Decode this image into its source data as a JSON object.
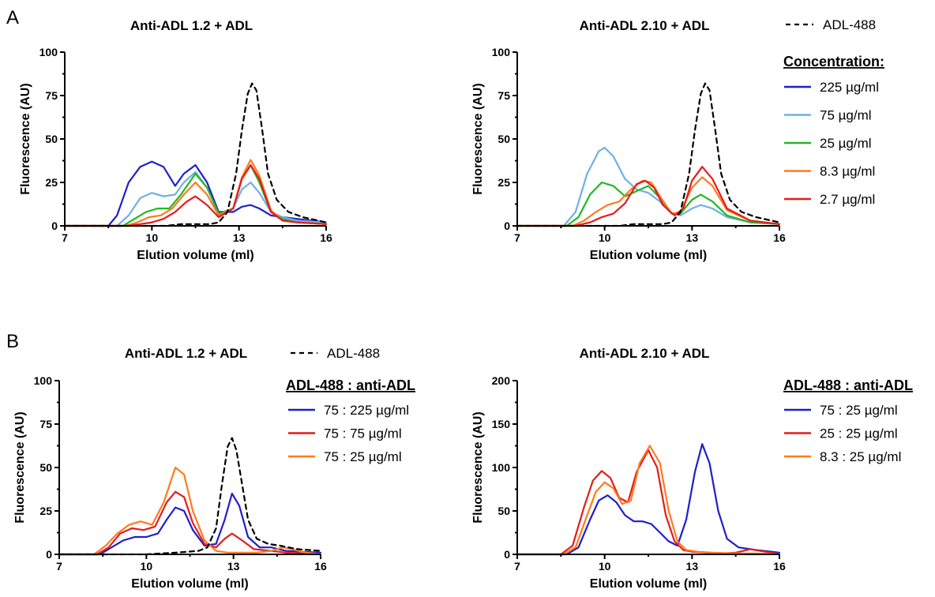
{
  "panel_labels": {
    "a": "A",
    "b": "B"
  },
  "chart_data": [
    {
      "type": "line",
      "panel": "A",
      "title": "Anti-ADL 1.2 + ADL",
      "xlabel": "Elution volume  (ml)",
      "ylabel": "Fluorescence (AU)",
      "xlim": [
        7,
        16
      ],
      "ylim": [
        0,
        100
      ],
      "xticks": [
        "7",
        "10",
        "13",
        "16"
      ],
      "yticks": [
        "0",
        "25",
        "50",
        "75",
        "100"
      ],
      "series": [
        {
          "name": "225 µg/ml",
          "color": "#1f1fcc",
          "style": "solid",
          "x": [
            7,
            8.5,
            8.8,
            9.2,
            9.6,
            10.0,
            10.4,
            10.8,
            11.1,
            11.5,
            11.9,
            12.3,
            12.8,
            13.1,
            13.4,
            13.7,
            14.1,
            14.5,
            15.0,
            16.0
          ],
          "y": [
            0,
            0,
            6,
            25,
            34,
            37,
            34,
            23,
            30,
            35,
            25,
            8,
            8,
            11,
            12,
            10,
            6,
            5,
            4,
            2
          ]
        },
        {
          "name": "75 µg/ml",
          "color": "#6fb0e8",
          "style": "solid",
          "x": [
            7,
            8.8,
            9.2,
            9.6,
            10.0,
            10.4,
            10.8,
            11.1,
            11.5,
            11.9,
            12.3,
            12.8,
            13.1,
            13.4,
            13.7,
            14.1,
            14.5,
            15.0,
            16.0
          ],
          "y": [
            0,
            0,
            6,
            16,
            19,
            17,
            18,
            25,
            31,
            22,
            7,
            10,
            21,
            25,
            19,
            8,
            5,
            3,
            2
          ]
        },
        {
          "name": "25 µg/ml",
          "color": "#22b822",
          "style": "solid",
          "x": [
            7,
            9.0,
            9.4,
            9.8,
            10.2,
            10.6,
            11.0,
            11.5,
            11.9,
            12.3,
            12.8,
            13.1,
            13.4,
            13.7,
            14.1,
            14.5,
            15.0,
            16.0
          ],
          "y": [
            0,
            0,
            4,
            8,
            10,
            10,
            18,
            30,
            22,
            7,
            10,
            27,
            35,
            25,
            8,
            4,
            2,
            1
          ]
        },
        {
          "name": "8.3 µg/ml",
          "color": "#ff7a1f",
          "style": "solid",
          "x": [
            7,
            9.1,
            9.5,
            9.9,
            10.3,
            10.7,
            11.1,
            11.5,
            11.9,
            12.3,
            12.8,
            13.1,
            13.4,
            13.7,
            14.1,
            14.5,
            15.0,
            16.0
          ],
          "y": [
            0,
            0,
            2,
            5,
            6,
            10,
            18,
            25,
            18,
            6,
            10,
            28,
            38,
            29,
            9,
            3,
            2,
            1
          ]
        },
        {
          "name": "2.7 µg/ml",
          "color": "#e51c1c",
          "style": "solid",
          "x": [
            7,
            9.2,
            9.6,
            10.0,
            10.4,
            10.8,
            11.2,
            11.5,
            11.9,
            12.3,
            12.8,
            13.1,
            13.4,
            13.7,
            14.1,
            14.5,
            15.0,
            16.0
          ],
          "y": [
            0,
            0,
            1,
            2,
            4,
            8,
            14,
            17,
            12,
            5,
            10,
            27,
            35,
            27,
            8,
            3,
            2,
            1
          ]
        },
        {
          "name": "ADL-488",
          "color": "#000000",
          "style": "dashed",
          "x": [
            7,
            10.5,
            11.0,
            11.5,
            12.0,
            12.3,
            12.6,
            12.9,
            13.1,
            13.3,
            13.45,
            13.6,
            13.8,
            14.0,
            14.3,
            14.7,
            15.2,
            16.0
          ],
          "y": [
            0,
            0,
            1,
            1,
            1,
            2,
            8,
            30,
            55,
            76,
            82,
            78,
            55,
            30,
            15,
            8,
            5,
            2
          ]
        }
      ]
    },
    {
      "type": "line",
      "panel": "A",
      "title": "Anti-ADL 2.10 + ADL",
      "xlabel": "Elution volume  (ml)",
      "ylabel": "Fluorescence (AU)",
      "xlim": [
        7,
        16
      ],
      "ylim": [
        0,
        100
      ],
      "xticks": [
        "7",
        "10",
        "13",
        "16"
      ],
      "yticks": [
        "0",
        "25",
        "50",
        "75",
        "100"
      ],
      "series": [
        {
          "name": "75 µg/ml",
          "color": "#6fb0e8",
          "style": "solid",
          "x": [
            7,
            8.6,
            9.0,
            9.4,
            9.8,
            10.0,
            10.3,
            10.7,
            11.1,
            11.5,
            11.9,
            12.3,
            12.6,
            13.0,
            13.3,
            13.7,
            14.2,
            15.0,
            16.0
          ],
          "y": [
            0,
            0,
            8,
            30,
            43,
            45,
            40,
            27,
            21,
            19,
            14,
            7,
            6,
            10,
            12,
            10,
            5,
            2,
            1
          ]
        },
        {
          "name": "25 µg/ml",
          "color": "#22b822",
          "style": "solid",
          "x": [
            7,
            8.7,
            9.1,
            9.5,
            9.9,
            10.3,
            10.7,
            11.1,
            11.5,
            11.9,
            12.3,
            12.6,
            13.0,
            13.3,
            13.7,
            14.2,
            15.0,
            16.0
          ],
          "y": [
            0,
            0,
            5,
            18,
            25,
            23,
            17,
            20,
            23,
            16,
            7,
            7,
            15,
            18,
            14,
            6,
            2,
            1
          ]
        },
        {
          "name": "8.3 µg/ml",
          "color": "#ff7a1f",
          "style": "solid",
          "x": [
            7,
            8.9,
            9.3,
            9.7,
            10.1,
            10.5,
            10.9,
            11.3,
            11.6,
            11.9,
            12.3,
            12.6,
            13.0,
            13.35,
            13.7,
            14.2,
            15.0,
            16.0
          ],
          "y": [
            0,
            0,
            3,
            8,
            12,
            14,
            21,
            26,
            25,
            17,
            7,
            8,
            22,
            28,
            23,
            9,
            3,
            1
          ]
        },
        {
          "name": "2.7 µg/ml",
          "color": "#e51c1c",
          "style": "solid",
          "x": [
            7,
            9.0,
            9.5,
            9.9,
            10.3,
            10.7,
            11.1,
            11.4,
            11.7,
            12.0,
            12.4,
            12.7,
            13.0,
            13.35,
            13.7,
            14.2,
            15.0,
            16.0
          ],
          "y": [
            0,
            0,
            2,
            5,
            7,
            13,
            24,
            26,
            22,
            12,
            6,
            10,
            26,
            34,
            27,
            10,
            3,
            1
          ]
        },
        {
          "name": "ADL-488",
          "color": "#000000",
          "style": "dashed",
          "x": [
            7,
            10.5,
            11.0,
            11.5,
            12.0,
            12.3,
            12.6,
            12.9,
            13.1,
            13.3,
            13.45,
            13.6,
            13.8,
            14.0,
            14.3,
            14.7,
            15.2,
            16.0
          ],
          "y": [
            0,
            0,
            1,
            1,
            1,
            2,
            8,
            30,
            55,
            76,
            82,
            78,
            55,
            30,
            15,
            8,
            5,
            2
          ]
        }
      ]
    },
    {
      "type": "line",
      "panel": "B",
      "title": "Anti-ADL 1.2 + ADL",
      "xlabel": "Elution volume  (ml)",
      "ylabel": "Fluorescence (AU)",
      "xlim": [
        7,
        16
      ],
      "ylim": [
        0,
        100
      ],
      "xticks": [
        "7",
        "10",
        "13",
        "16"
      ],
      "yticks": [
        "0",
        "25",
        "50",
        "75",
        "100"
      ],
      "series": [
        {
          "name": "75   : 225 µg/ml",
          "color": "#1f1fcc",
          "style": "solid",
          "x": [
            7,
            8.4,
            8.8,
            9.2,
            9.6,
            10.0,
            10.4,
            10.7,
            11.0,
            11.3,
            11.6,
            12.0,
            12.4,
            12.7,
            12.95,
            13.2,
            13.5,
            13.9,
            14.3,
            14.8,
            16.0
          ],
          "y": [
            0,
            0,
            4,
            8,
            10,
            10,
            12,
            20,
            27,
            25,
            14,
            5,
            6,
            20,
            35,
            28,
            10,
            4,
            4,
            2,
            1
          ]
        },
        {
          "name": "75   : 75 µg/ml",
          "color": "#e51c1c",
          "style": "solid",
          "x": [
            7,
            8.3,
            8.7,
            9.1,
            9.5,
            9.9,
            10.3,
            10.7,
            11.0,
            11.3,
            11.6,
            12.0,
            12.4,
            12.7,
            12.95,
            13.3,
            13.7,
            14.3,
            14.8,
            16.0
          ],
          "y": [
            0,
            0,
            4,
            12,
            15,
            14,
            16,
            30,
            36,
            33,
            18,
            6,
            4,
            9,
            12,
            8,
            3,
            2,
            1,
            0
          ]
        },
        {
          "name": "75   : 25 µg/ml",
          "color": "#ff7a1f",
          "style": "solid",
          "x": [
            7,
            8.2,
            8.6,
            9.0,
            9.4,
            9.8,
            10.2,
            10.6,
            11.0,
            11.3,
            11.6,
            12.0,
            12.4,
            12.8,
            13.2,
            13.8,
            14.3,
            14.7,
            15.0,
            15.5,
            16.0
          ],
          "y": [
            0,
            0,
            5,
            12,
            17,
            19,
            17,
            30,
            50,
            46,
            25,
            8,
            2,
            1,
            1,
            1,
            2,
            4,
            3,
            1,
            0
          ]
        },
        {
          "name": "ADL-488",
          "color": "#000000",
          "style": "dashed",
          "x": [
            7,
            10.0,
            11.0,
            11.8,
            12.1,
            12.4,
            12.6,
            12.8,
            12.95,
            13.1,
            13.3,
            13.5,
            13.8,
            14.2,
            14.6,
            15.2,
            16.0
          ],
          "y": [
            0,
            0,
            1,
            2,
            4,
            15,
            40,
            62,
            67,
            60,
            40,
            20,
            9,
            6,
            5,
            3,
            2
          ]
        }
      ]
    },
    {
      "type": "line",
      "panel": "B",
      "title": "Anti-ADL 2.10 + ADL",
      "xlabel": "Elution volume  (ml)",
      "ylabel": "Fluorescence (AU)",
      "xlim": [
        7,
        16
      ],
      "ylim": [
        0,
        200
      ],
      "xticks": [
        "7",
        "10",
        "13",
        "16"
      ],
      "yticks": [
        "0",
        "50",
        "100",
        "150",
        "200"
      ],
      "series": [
        {
          "name": "75   : 25 µg/ml",
          "color": "#1f1fcc",
          "style": "solid",
          "x": [
            7,
            8.7,
            9.1,
            9.5,
            9.8,
            10.1,
            10.4,
            10.7,
            11.0,
            11.3,
            11.6,
            11.9,
            12.2,
            12.5,
            12.8,
            13.1,
            13.35,
            13.6,
            13.9,
            14.2,
            14.6,
            15.2,
            16.0
          ],
          "y": [
            0,
            0,
            8,
            40,
            62,
            68,
            60,
            45,
            38,
            38,
            35,
            25,
            15,
            10,
            40,
            95,
            127,
            105,
            50,
            18,
            8,
            5,
            2
          ]
        },
        {
          "name": "25   : 25 µg/ml",
          "color": "#e51c1c",
          "style": "solid",
          "x": [
            7,
            8.5,
            8.9,
            9.3,
            9.6,
            9.9,
            10.2,
            10.5,
            10.8,
            11.1,
            11.5,
            11.8,
            12.1,
            12.4,
            12.7,
            13.0,
            13.5,
            14.0,
            14.5,
            15.0,
            15.5,
            16.0
          ],
          "y": [
            0,
            0,
            10,
            55,
            85,
            96,
            88,
            65,
            60,
            95,
            120,
            100,
            45,
            15,
            5,
            3,
            2,
            1,
            2,
            6,
            3,
            0
          ]
        },
        {
          "name": "8.3  : 25 µg/ml",
          "color": "#ff7a1f",
          "style": "solid",
          "x": [
            7,
            8.6,
            9.0,
            9.4,
            9.7,
            10.0,
            10.3,
            10.6,
            10.9,
            11.2,
            11.55,
            11.9,
            12.2,
            12.5,
            12.8,
            13.2,
            13.7,
            14.5,
            15.2,
            16.0
          ],
          "y": [
            0,
            0,
            8,
            45,
            72,
            83,
            76,
            58,
            62,
            105,
            125,
            105,
            50,
            15,
            5,
            3,
            2,
            1,
            1,
            0
          ]
        },
        {
          "name": "ADL-488",
          "color": "#000000",
          "style": "dashed",
          "x": [],
          "y": []
        }
      ]
    }
  ],
  "legends": {
    "a_adl488": "ADL-488",
    "a_heading": "Concentration:",
    "a_items": [
      "225 µg/ml",
      "75 µg/ml",
      "25 µg/ml",
      "8.3 µg/ml",
      "2.7 µg/ml"
    ],
    "a_colors": [
      "#1f1fcc",
      "#6fb0e8",
      "#22b822",
      "#ff7a1f",
      "#e51c1c"
    ],
    "b_adl488": "ADL-488",
    "b_heading": "ADL-488 : anti-ADL",
    "b1_items": [
      "75   : 225 µg/ml",
      "75   : 75 µg/ml",
      "75   : 25 µg/ml"
    ],
    "b1_colors": [
      "#1f1fcc",
      "#e51c1c",
      "#ff7a1f"
    ],
    "b2_items": [
      "75   : 25 µg/ml",
      "25   : 25 µg/ml",
      "8.3  : 25 µg/ml"
    ],
    "b2_colors": [
      "#1f1fcc",
      "#e51c1c",
      "#ff7a1f"
    ]
  }
}
